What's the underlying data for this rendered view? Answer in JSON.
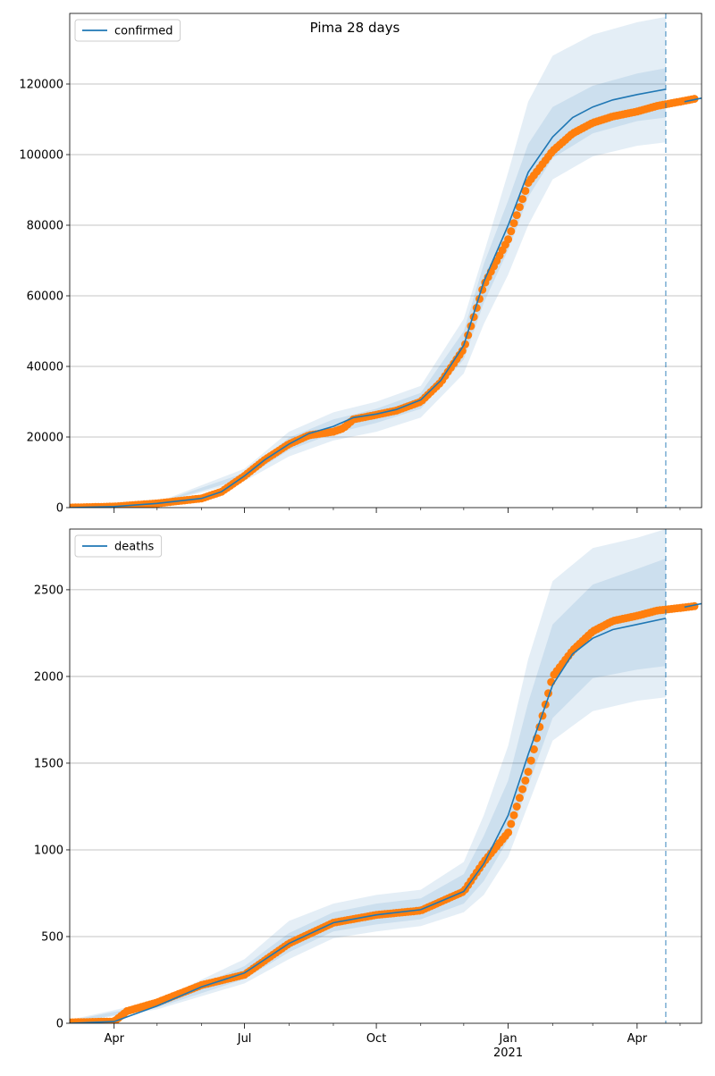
{
  "title": "Pima 28 days",
  "chart_data": [
    {
      "type": "line",
      "panel": "confirmed",
      "xlim": [
        "2020-03-01",
        "2021-05-16"
      ],
      "ylim": [
        0,
        140000
      ],
      "yticks": [
        0,
        20000,
        40000,
        60000,
        80000,
        100000,
        120000
      ],
      "grid": true,
      "legend_placement": "top-left",
      "forecast_start": "2021-04-21",
      "series": [
        {
          "name": "confirmed",
          "style": "model-line",
          "color": "#1f77b4",
          "x": [
            "2020-03-01",
            "2020-04-01",
            "2020-05-01",
            "2020-06-01",
            "2020-06-15",
            "2020-07-01",
            "2020-07-15",
            "2020-08-01",
            "2020-08-15",
            "2020-09-01",
            "2020-09-15",
            "2020-10-01",
            "2020-10-15",
            "2020-11-01",
            "2020-11-15",
            "2020-12-01",
            "2020-12-15",
            "2021-01-01",
            "2021-01-15",
            "2021-02-01",
            "2021-02-15",
            "2021-03-01",
            "2021-03-15",
            "2021-04-01",
            "2021-04-21"
          ],
          "y": [
            0,
            300,
            1200,
            2600,
            4500,
            9000,
            13500,
            18000,
            21000,
            23000,
            25500,
            26500,
            27800,
            30500,
            36000,
            46000,
            64000,
            80000,
            95000,
            105000,
            110500,
            113500,
            115500,
            117000,
            118500
          ]
        },
        {
          "name": "confirmed-observed",
          "style": "observed-points",
          "color": "#ff7f0e",
          "x": [
            "2020-03-01",
            "2020-04-01",
            "2020-05-01",
            "2020-06-01",
            "2020-06-15",
            "2020-07-01",
            "2020-07-15",
            "2020-08-01",
            "2020-08-15",
            "2020-09-01",
            "2020-09-08",
            "2020-09-15",
            "2020-10-01",
            "2020-10-15",
            "2020-11-01",
            "2020-11-15",
            "2020-12-01",
            "2020-12-15",
            "2021-01-01",
            "2021-01-15",
            "2021-02-01",
            "2021-02-15",
            "2021-03-01",
            "2021-03-15",
            "2021-04-01",
            "2021-04-15",
            "2021-05-01",
            "2021-05-11"
          ],
          "y": [
            0,
            300,
            1200,
            2600,
            4500,
            9000,
            13500,
            18000,
            20500,
            21500,
            22500,
            25000,
            26300,
            27500,
            30000,
            35500,
            45000,
            63000,
            76000,
            92000,
            101000,
            106000,
            109000,
            110800,
            112200,
            113800,
            115000,
            115800
          ]
        },
        {
          "name": "confirmed-band-outer",
          "style": "band",
          "color": "#1f77b4",
          "x": [
            "2020-03-01",
            "2020-05-01",
            "2020-07-01",
            "2020-08-01",
            "2020-09-01",
            "2020-10-01",
            "2020-11-01",
            "2020-12-01",
            "2020-12-15",
            "2021-01-01",
            "2021-01-15",
            "2021-02-01",
            "2021-03-01",
            "2021-04-01",
            "2021-04-21"
          ],
          "lower": [
            0,
            1000,
            7500,
            14500,
            19000,
            21500,
            25500,
            38000,
            52000,
            66000,
            80000,
            93000,
            99500,
            102500,
            103500
          ],
          "upper": [
            500,
            1500,
            11000,
            21500,
            27000,
            30000,
            34500,
            53500,
            72000,
            95000,
            115000,
            128000,
            134000,
            137500,
            139000
          ]
        },
        {
          "name": "confirmed-band-inner",
          "style": "band",
          "color": "#1f77b4",
          "x": [
            "2020-03-01",
            "2020-05-01",
            "2020-07-01",
            "2020-08-01",
            "2020-09-01",
            "2020-10-01",
            "2020-11-01",
            "2020-12-01",
            "2020-12-15",
            "2021-01-01",
            "2021-01-15",
            "2021-02-01",
            "2021-03-01",
            "2021-04-01",
            "2021-04-21"
          ],
          "lower": [
            0,
            1100,
            8300,
            16300,
            21000,
            24000,
            28000,
            42000,
            58000,
            73000,
            88000,
            99000,
            106000,
            109500,
            110500
          ],
          "upper": [
            400,
            1350,
            9800,
            19800,
            25000,
            28000,
            32500,
            50000,
            69000,
            87000,
            103000,
            113500,
            119500,
            123000,
            124500
          ]
        },
        {
          "name": "confirmed-tail",
          "style": "tail-line",
          "color": "#1f77b4",
          "x": [
            "2021-05-04",
            "2021-05-10",
            "2021-05-16"
          ],
          "y": [
            115000,
            115500,
            116000
          ]
        }
      ]
    },
    {
      "type": "line",
      "panel": "deaths",
      "xlim": [
        "2020-03-01",
        "2021-05-16"
      ],
      "ylim": [
        0,
        2850
      ],
      "yticks": [
        0,
        500,
        1000,
        1500,
        2000,
        2500
      ],
      "xticks": [
        "Apr",
        "Jul",
        "Oct",
        "Jan",
        "Apr"
      ],
      "xtick_year": "2021",
      "grid": true,
      "legend_placement": "top-left",
      "forecast_start": "2021-04-21",
      "series": [
        {
          "name": "deaths",
          "style": "model-line",
          "color": "#1f77b4",
          "x": [
            "2020-03-01",
            "2020-04-01",
            "2020-05-01",
            "2020-06-01",
            "2020-07-01",
            "2020-08-01",
            "2020-09-01",
            "2020-10-01",
            "2020-11-01",
            "2020-12-01",
            "2020-12-15",
            "2021-01-01",
            "2021-01-15",
            "2021-02-01",
            "2021-02-15",
            "2021-03-01",
            "2021-03-15",
            "2021-04-01",
            "2021-04-21"
          ],
          "y": [
            0,
            10,
            100,
            210,
            290,
            460,
            580,
            625,
            655,
            760,
            920,
            1200,
            1550,
            1950,
            2130,
            2220,
            2270,
            2300,
            2335
          ]
        },
        {
          "name": "deaths-observed",
          "style": "observed-points",
          "color": "#ff7f0e",
          "x": [
            "2020-03-01",
            "2020-04-01",
            "2020-04-10",
            "2020-05-01",
            "2020-06-01",
            "2020-07-01",
            "2020-08-01",
            "2020-09-01",
            "2020-10-01",
            "2020-11-01",
            "2020-12-01",
            "2020-12-15",
            "2021-01-01",
            "2021-01-15",
            "2021-02-01",
            "2021-02-15",
            "2021-03-01",
            "2021-03-15",
            "2021-04-01",
            "2021-04-15",
            "2021-05-01",
            "2021-05-11"
          ],
          "y": [
            5,
            10,
            70,
            120,
            220,
            280,
            460,
            580,
            625,
            650,
            760,
            930,
            1100,
            1450,
            2000,
            2150,
            2260,
            2320,
            2350,
            2380,
            2395,
            2405
          ]
        },
        {
          "name": "deaths-band-outer",
          "style": "band",
          "color": "#1f77b4",
          "x": [
            "2020-03-01",
            "2020-05-01",
            "2020-07-01",
            "2020-08-01",
            "2020-09-01",
            "2020-10-01",
            "2020-11-01",
            "2020-12-01",
            "2020-12-15",
            "2021-01-01",
            "2021-01-15",
            "2021-02-01",
            "2021-03-01",
            "2021-04-01",
            "2021-04-21"
          ],
          "lower": [
            0,
            80,
            230,
            370,
            490,
            530,
            560,
            640,
            740,
            960,
            1260,
            1630,
            1800,
            1860,
            1880
          ],
          "upper": [
            20,
            130,
            370,
            590,
            690,
            740,
            770,
            930,
            1200,
            1600,
            2100,
            2550,
            2740,
            2800,
            2850
          ]
        },
        {
          "name": "deaths-band-inner",
          "style": "band",
          "color": "#1f77b4",
          "x": [
            "2020-03-01",
            "2020-05-01",
            "2020-07-01",
            "2020-08-01",
            "2020-09-01",
            "2020-10-01",
            "2020-11-01",
            "2020-12-01",
            "2020-12-15",
            "2021-01-01",
            "2021-01-15",
            "2021-02-01",
            "2021-03-01",
            "2021-04-01",
            "2021-04-21"
          ],
          "lower": [
            0,
            90,
            255,
            410,
            530,
            570,
            600,
            690,
            820,
            1060,
            1370,
            1760,
            1990,
            2040,
            2060
          ],
          "upper": [
            15,
            115,
            330,
            520,
            640,
            690,
            720,
            860,
            1080,
            1400,
            1850,
            2300,
            2530,
            2620,
            2680
          ]
        },
        {
          "name": "deaths-tail",
          "style": "tail-line",
          "color": "#1f77b4",
          "x": [
            "2021-05-04",
            "2021-05-10",
            "2021-05-16"
          ],
          "y": [
            2400,
            2410,
            2420
          ]
        }
      ]
    }
  ]
}
